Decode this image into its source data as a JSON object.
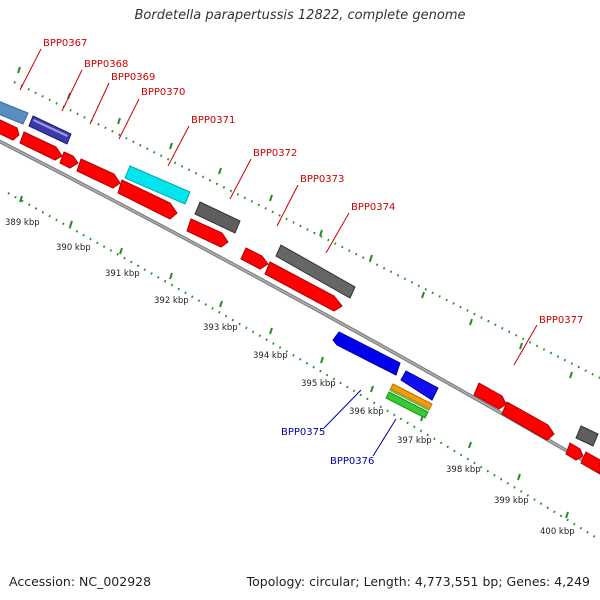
{
  "title": "Bordetella parapertussis 12822, complete genome",
  "footer": {
    "accession": "Accession: NC_002928",
    "summary": "Topology: circular; Length: 4,773,551 bp; Genes: 4,249"
  },
  "colors": {
    "cds_forward": "#ff0000",
    "cds_reverse": "#0000ee",
    "label_forward": "#cc0000",
    "label_reverse": "#0000aa",
    "ticks": "#2a8a2a",
    "backbone": "#888888"
  },
  "scale": {
    "unit": "kbp",
    "ticks": [
      "389 kbp",
      "390 kbp",
      "391 kbp",
      "392 kbp",
      "393 kbp",
      "394 kbp",
      "395 kbp",
      "396 kbp",
      "397 kbp",
      "398 kbp",
      "399 kbp",
      "400 kbp"
    ]
  },
  "gene_labels": [
    {
      "name": "BPP0367",
      "strand": "forward"
    },
    {
      "name": "BPP0368",
      "strand": "forward"
    },
    {
      "name": "BPP0369",
      "strand": "forward"
    },
    {
      "name": "BPP0370",
      "strand": "forward"
    },
    {
      "name": "BPP0371",
      "strand": "forward"
    },
    {
      "name": "BPP0372",
      "strand": "forward"
    },
    {
      "name": "BPP0373",
      "strand": "forward"
    },
    {
      "name": "BPP0374",
      "strand": "forward"
    },
    {
      "name": "BPP0375",
      "strand": "reverse"
    },
    {
      "name": "BPP0376",
      "strand": "reverse"
    },
    {
      "name": "BPP0377",
      "strand": "forward"
    }
  ]
}
